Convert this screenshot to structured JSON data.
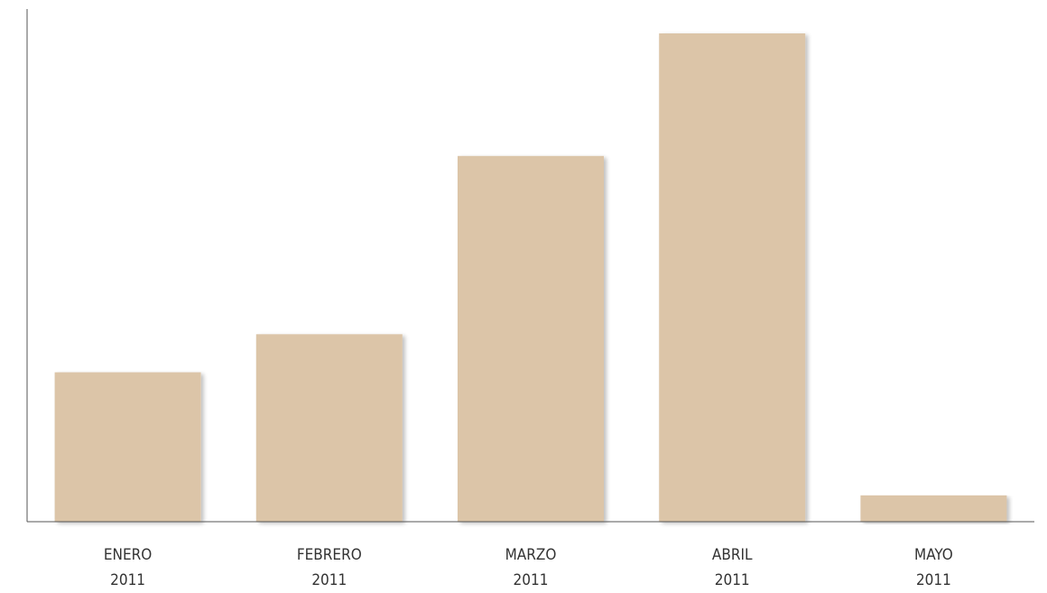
{
  "chart_data": {
    "type": "bar",
    "categories": [
      [
        "ENERO",
        "2011"
      ],
      [
        "FEBRERO",
        "2011"
      ],
      [
        "MARZO",
        "2011"
      ],
      [
        "ABRIL",
        "2011"
      ],
      [
        "MAYO",
        "2011"
      ]
    ],
    "values": [
      30.6,
      38.4,
      74.9,
      100,
      5.4
    ],
    "title": "",
    "xlabel": "",
    "ylabel": "",
    "ylim": [
      0,
      105
    ],
    "grid": false,
    "legend": "none",
    "bar_color": "#dcc5a8",
    "axis_color": "#555555"
  }
}
